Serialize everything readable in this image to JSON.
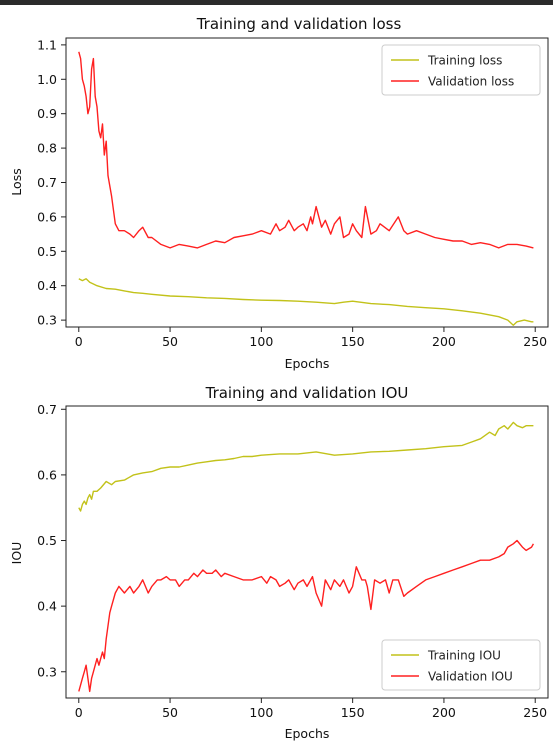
{
  "chart_data": [
    {
      "type": "line",
      "title": "Training and validation loss",
      "xlabel": "Epochs",
      "ylabel": "Loss",
      "xlim": [
        -7,
        257
      ],
      "ylim": [
        0.28,
        1.12
      ],
      "xticks": [
        0,
        50,
        100,
        150,
        200,
        250
      ],
      "yticks": [
        0.3,
        0.4,
        0.5,
        0.6,
        0.7,
        0.8,
        0.9,
        1.0,
        1.1
      ],
      "ytick_labels": [
        "0.3",
        "0.4",
        "0.5",
        "0.6",
        "0.7",
        "0.8",
        "0.9",
        "1.0",
        "1.1"
      ],
      "legend_position": "top-right",
      "grid": false,
      "series": [
        {
          "name": "Training loss",
          "color": "#c2c21a",
          "x": [
            0,
            2,
            4,
            6,
            8,
            10,
            15,
            20,
            25,
            30,
            35,
            40,
            50,
            60,
            70,
            80,
            90,
            100,
            110,
            120,
            130,
            140,
            145,
            150,
            160,
            170,
            180,
            190,
            200,
            210,
            220,
            230,
            235,
            238,
            240,
            244,
            248,
            249
          ],
          "y": [
            0.42,
            0.415,
            0.42,
            0.41,
            0.405,
            0.4,
            0.392,
            0.39,
            0.385,
            0.38,
            0.378,
            0.375,
            0.37,
            0.368,
            0.365,
            0.363,
            0.36,
            0.358,
            0.357,
            0.355,
            0.352,
            0.348,
            0.352,
            0.355,
            0.348,
            0.345,
            0.34,
            0.336,
            0.333,
            0.327,
            0.32,
            0.31,
            0.3,
            0.285,
            0.295,
            0.3,
            0.295,
            0.295
          ]
        },
        {
          "name": "Validation loss",
          "color": "#ff2020",
          "x": [
            0,
            1,
            2,
            3,
            4,
            5,
            6,
            7,
            8,
            9,
            10,
            11,
            12,
            13,
            14,
            15,
            16,
            18,
            20,
            22,
            25,
            28,
            30,
            33,
            35,
            38,
            40,
            45,
            50,
            55,
            60,
            65,
            70,
            75,
            80,
            85,
            90,
            95,
            100,
            105,
            108,
            110,
            113,
            115,
            118,
            120,
            123,
            125,
            127,
            128,
            130,
            133,
            135,
            138,
            140,
            143,
            145,
            148,
            150,
            152,
            155,
            157,
            160,
            163,
            165,
            170,
            175,
            178,
            180,
            185,
            190,
            195,
            200,
            205,
            210,
            215,
            220,
            225,
            230,
            235,
            240,
            245,
            249
          ],
          "y": [
            1.08,
            1.06,
            1.0,
            0.98,
            0.95,
            0.9,
            0.92,
            1.03,
            1.06,
            0.95,
            0.92,
            0.85,
            0.83,
            0.87,
            0.78,
            0.82,
            0.72,
            0.66,
            0.58,
            0.56,
            0.56,
            0.55,
            0.54,
            0.56,
            0.57,
            0.54,
            0.54,
            0.52,
            0.51,
            0.52,
            0.515,
            0.51,
            0.52,
            0.53,
            0.525,
            0.54,
            0.545,
            0.55,
            0.56,
            0.55,
            0.58,
            0.56,
            0.57,
            0.59,
            0.56,
            0.57,
            0.58,
            0.56,
            0.6,
            0.58,
            0.63,
            0.57,
            0.59,
            0.55,
            0.58,
            0.6,
            0.54,
            0.55,
            0.58,
            0.56,
            0.54,
            0.63,
            0.55,
            0.56,
            0.58,
            0.56,
            0.6,
            0.56,
            0.55,
            0.56,
            0.55,
            0.54,
            0.535,
            0.53,
            0.53,
            0.52,
            0.525,
            0.52,
            0.51,
            0.52,
            0.52,
            0.515,
            0.51
          ]
        }
      ]
    },
    {
      "type": "line",
      "title": "Training and validation IOU",
      "xlabel": "Epochs",
      "ylabel": "IOU",
      "xlim": [
        -7,
        257
      ],
      "ylim": [
        0.26,
        0.705
      ],
      "xticks": [
        0,
        50,
        100,
        150,
        200,
        250
      ],
      "yticks": [
        0.3,
        0.4,
        0.5,
        0.6,
        0.7
      ],
      "ytick_labels": [
        "0.3",
        "0.4",
        "0.5",
        "0.6",
        "0.7"
      ],
      "legend_position": "bottom-right",
      "grid": false,
      "series": [
        {
          "name": "Training IOU",
          "color": "#c2c21a",
          "x": [
            0,
            1,
            2,
            3,
            4,
            5,
            6,
            7,
            8,
            10,
            12,
            15,
            18,
            20,
            25,
            30,
            35,
            40,
            45,
            50,
            55,
            60,
            65,
            70,
            75,
            80,
            85,
            90,
            95,
            100,
            110,
            120,
            130,
            140,
            150,
            160,
            170,
            180,
            190,
            200,
            210,
            215,
            220,
            225,
            228,
            230,
            233,
            235,
            238,
            240,
            243,
            245,
            249
          ],
          "y": [
            0.55,
            0.545,
            0.555,
            0.56,
            0.555,
            0.565,
            0.57,
            0.563,
            0.575,
            0.575,
            0.58,
            0.59,
            0.585,
            0.59,
            0.592,
            0.6,
            0.603,
            0.605,
            0.61,
            0.612,
            0.612,
            0.615,
            0.618,
            0.62,
            0.622,
            0.623,
            0.625,
            0.628,
            0.628,
            0.63,
            0.632,
            0.632,
            0.635,
            0.63,
            0.632,
            0.635,
            0.636,
            0.638,
            0.64,
            0.643,
            0.645,
            0.65,
            0.655,
            0.665,
            0.66,
            0.67,
            0.675,
            0.67,
            0.68,
            0.675,
            0.672,
            0.675,
            0.675
          ]
        },
        {
          "name": "Validation IOU",
          "color": "#ff2020",
          "x": [
            0,
            1,
            2,
            3,
            4,
            5,
            6,
            7,
            8,
            9,
            10,
            11,
            12,
            13,
            14,
            15,
            16,
            17,
            18,
            20,
            22,
            25,
            28,
            30,
            33,
            35,
            38,
            40,
            43,
            45,
            48,
            50,
            53,
            55,
            58,
            60,
            63,
            65,
            68,
            70,
            73,
            75,
            78,
            80,
            85,
            90,
            95,
            100,
            103,
            105,
            108,
            110,
            113,
            115,
            118,
            120,
            123,
            125,
            128,
            130,
            133,
            135,
            138,
            140,
            143,
            145,
            148,
            150,
            152,
            155,
            157,
            158,
            160,
            162,
            165,
            168,
            170,
            172,
            175,
            178,
            180,
            185,
            190,
            195,
            200,
            205,
            210,
            215,
            220,
            225,
            230,
            233,
            235,
            238,
            240,
            243,
            245,
            248,
            249
          ],
          "y": [
            0.27,
            0.28,
            0.29,
            0.3,
            0.31,
            0.29,
            0.27,
            0.29,
            0.3,
            0.31,
            0.32,
            0.31,
            0.32,
            0.33,
            0.32,
            0.35,
            0.37,
            0.39,
            0.4,
            0.42,
            0.43,
            0.42,
            0.43,
            0.42,
            0.43,
            0.44,
            0.42,
            0.43,
            0.44,
            0.44,
            0.445,
            0.44,
            0.44,
            0.43,
            0.44,
            0.44,
            0.45,
            0.445,
            0.455,
            0.45,
            0.45,
            0.455,
            0.445,
            0.45,
            0.445,
            0.44,
            0.44,
            0.445,
            0.435,
            0.445,
            0.44,
            0.43,
            0.435,
            0.44,
            0.425,
            0.435,
            0.44,
            0.43,
            0.445,
            0.42,
            0.4,
            0.44,
            0.425,
            0.44,
            0.43,
            0.44,
            0.42,
            0.43,
            0.46,
            0.44,
            0.44,
            0.43,
            0.395,
            0.44,
            0.435,
            0.44,
            0.42,
            0.44,
            0.44,
            0.415,
            0.42,
            0.43,
            0.44,
            0.445,
            0.45,
            0.455,
            0.46,
            0.465,
            0.47,
            0.47,
            0.475,
            0.48,
            0.49,
            0.495,
            0.5,
            0.49,
            0.485,
            0.49,
            0.495
          ]
        }
      ]
    }
  ]
}
